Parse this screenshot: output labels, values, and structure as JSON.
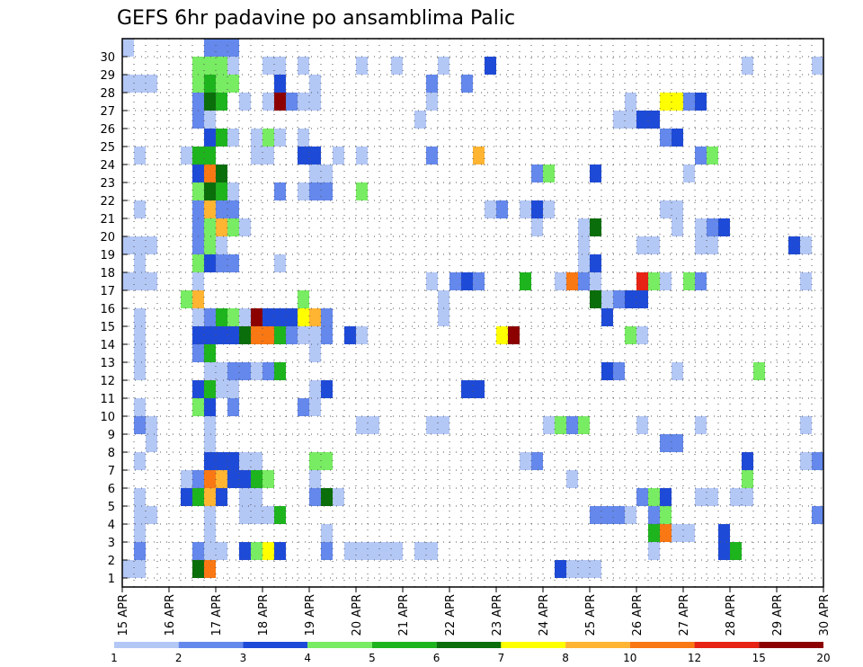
{
  "chart_data": {
    "type": "heatmap",
    "title": "GEFS 6hr padavine po ansamblima Palic",
    "y_ticks": [
      "1",
      "2",
      "3",
      "4",
      "5",
      "6",
      "7",
      "8",
      "9",
      "10",
      "11",
      "12",
      "13",
      "14",
      "15",
      "16",
      "17",
      "18",
      "19",
      "20",
      "21",
      "22",
      "23",
      "24",
      "25",
      "26",
      "27",
      "28",
      "29",
      "30"
    ],
    "x_ticks": [
      "15 APR",
      "16 APR",
      "17 APR",
      "18 APR",
      "19 APR",
      "20 APR",
      "21 APR",
      "22 APR",
      "23 APR",
      "24 APR",
      "25 APR",
      "26 APR",
      "27 APR",
      "28 APR",
      "29 APR",
      "30 APR"
    ],
    "x_range_steps": [
      0,
      60
    ],
    "y_range": [
      0,
      30
    ],
    "grid": "dotted",
    "colorbar": {
      "labels": [
        "1",
        "2",
        "3",
        "4",
        "5",
        "6",
        "7",
        "8",
        "10",
        "12",
        "15",
        "20"
      ],
      "colors": [
        "#b4c8f6",
        "#6488ec",
        "#1e4ad8",
        "#78ec62",
        "#1eb41e",
        "#0a6e0a",
        "#ffff00",
        "#ffb432",
        "#fa7814",
        "#e62314",
        "#8c0000"
      ]
    },
    "cells": [
      [
        0,
        30,
        1
      ],
      [
        7,
        30,
        2
      ],
      [
        8,
        30,
        2
      ],
      [
        9,
        30,
        2
      ],
      [
        6,
        29,
        4
      ],
      [
        7,
        29,
        4
      ],
      [
        8,
        29,
        4
      ],
      [
        9,
        29,
        1
      ],
      [
        12,
        29,
        1
      ],
      [
        13,
        29,
        1
      ],
      [
        15,
        29,
        1
      ],
      [
        20,
        29,
        1
      ],
      [
        23,
        29,
        1
      ],
      [
        27,
        29,
        1
      ],
      [
        31,
        29,
        3
      ],
      [
        53,
        29,
        1
      ],
      [
        59,
        29,
        1
      ],
      [
        0,
        28,
        1
      ],
      [
        1,
        28,
        1
      ],
      [
        2,
        28,
        1
      ],
      [
        6,
        28,
        4
      ],
      [
        7,
        28,
        5
      ],
      [
        8,
        28,
        4
      ],
      [
        9,
        28,
        4
      ],
      [
        13,
        28,
        3
      ],
      [
        16,
        28,
        1
      ],
      [
        26,
        28,
        2
      ],
      [
        29,
        28,
        2
      ],
      [
        6,
        27,
        2
      ],
      [
        7,
        27,
        6
      ],
      [
        8,
        27,
        5
      ],
      [
        10,
        27,
        1
      ],
      [
        12,
        27,
        1
      ],
      [
        13,
        27,
        11
      ],
      [
        14,
        27,
        2
      ],
      [
        15,
        27,
        1
      ],
      [
        16,
        27,
        1
      ],
      [
        26,
        27,
        1
      ],
      [
        43,
        27,
        1
      ],
      [
        46,
        27,
        7
      ],
      [
        47,
        27,
        7
      ],
      [
        48,
        27,
        2
      ],
      [
        49,
        27,
        3
      ],
      [
        6,
        26,
        2
      ],
      [
        7,
        26,
        1
      ],
      [
        25,
        26,
        1
      ],
      [
        42,
        26,
        1
      ],
      [
        43,
        26,
        1
      ],
      [
        44,
        26,
        3
      ],
      [
        45,
        26,
        3
      ],
      [
        7,
        25,
        3
      ],
      [
        8,
        25,
        5
      ],
      [
        9,
        25,
        1
      ],
      [
        11,
        25,
        1
      ],
      [
        12,
        25,
        4
      ],
      [
        13,
        25,
        1
      ],
      [
        15,
        25,
        1
      ],
      [
        46,
        25,
        2
      ],
      [
        47,
        25,
        3
      ],
      [
        1,
        24,
        1
      ],
      [
        5,
        24,
        1
      ],
      [
        6,
        24,
        5
      ],
      [
        7,
        24,
        5
      ],
      [
        11,
        24,
        1
      ],
      [
        12,
        24,
        1
      ],
      [
        15,
        24,
        3
      ],
      [
        16,
        24,
        3
      ],
      [
        18,
        24,
        1
      ],
      [
        20,
        24,
        1
      ],
      [
        26,
        24,
        2
      ],
      [
        30,
        24,
        8
      ],
      [
        49,
        24,
        2
      ],
      [
        50,
        24,
        4
      ],
      [
        6,
        23,
        3
      ],
      [
        7,
        23,
        9
      ],
      [
        8,
        23,
        6
      ],
      [
        16,
        23,
        1
      ],
      [
        17,
        23,
        1
      ],
      [
        35,
        23,
        2
      ],
      [
        36,
        23,
        4
      ],
      [
        40,
        23,
        3
      ],
      [
        48,
        23,
        1
      ],
      [
        6,
        22,
        4
      ],
      [
        7,
        22,
        6
      ],
      [
        8,
        22,
        5
      ],
      [
        9,
        22,
        1
      ],
      [
        13,
        22,
        2
      ],
      [
        15,
        22,
        1
      ],
      [
        16,
        22,
        2
      ],
      [
        17,
        22,
        2
      ],
      [
        20,
        22,
        4
      ],
      [
        1,
        21,
        1
      ],
      [
        6,
        21,
        2
      ],
      [
        7,
        21,
        8
      ],
      [
        8,
        21,
        2
      ],
      [
        9,
        21,
        2
      ],
      [
        31,
        21,
        1
      ],
      [
        32,
        21,
        2
      ],
      [
        34,
        21,
        1
      ],
      [
        35,
        21,
        3
      ],
      [
        36,
        21,
        1
      ],
      [
        46,
        21,
        1
      ],
      [
        47,
        21,
        1
      ],
      [
        6,
        20,
        2
      ],
      [
        7,
        20,
        4
      ],
      [
        8,
        20,
        8
      ],
      [
        9,
        20,
        4
      ],
      [
        10,
        20,
        1
      ],
      [
        35,
        20,
        1
      ],
      [
        39,
        20,
        1
      ],
      [
        40,
        20,
        6
      ],
      [
        47,
        20,
        1
      ],
      [
        49,
        20,
        1
      ],
      [
        50,
        20,
        2
      ],
      [
        51,
        20,
        3
      ],
      [
        0,
        19,
        1
      ],
      [
        1,
        19,
        1
      ],
      [
        2,
        19,
        1
      ],
      [
        6,
        19,
        2
      ],
      [
        7,
        19,
        4
      ],
      [
        8,
        19,
        1
      ],
      [
        39,
        19,
        1
      ],
      [
        44,
        19,
        1
      ],
      [
        45,
        19,
        1
      ],
      [
        49,
        19,
        1
      ],
      [
        50,
        19,
        1
      ],
      [
        57,
        19,
        3
      ],
      [
        58,
        19,
        1
      ],
      [
        1,
        18,
        1
      ],
      [
        6,
        18,
        4
      ],
      [
        7,
        18,
        3
      ],
      [
        8,
        18,
        2
      ],
      [
        9,
        18,
        2
      ],
      [
        13,
        18,
        1
      ],
      [
        39,
        18,
        1
      ],
      [
        40,
        18,
        3
      ],
      [
        0,
        17,
        1
      ],
      [
        1,
        17,
        1
      ],
      [
        2,
        17,
        1
      ],
      [
        6,
        17,
        1
      ],
      [
        26,
        17,
        1
      ],
      [
        28,
        17,
        2
      ],
      [
        29,
        17,
        3
      ],
      [
        30,
        17,
        2
      ],
      [
        34,
        17,
        5
      ],
      [
        37,
        17,
        1
      ],
      [
        38,
        17,
        9
      ],
      [
        39,
        17,
        2
      ],
      [
        40,
        17,
        1
      ],
      [
        44,
        17,
        10
      ],
      [
        45,
        17,
        4
      ],
      [
        46,
        17,
        1
      ],
      [
        48,
        17,
        4
      ],
      [
        49,
        17,
        2
      ],
      [
        58,
        17,
        1
      ],
      [
        5,
        16,
        4
      ],
      [
        6,
        16,
        8
      ],
      [
        15,
        16,
        4
      ],
      [
        27,
        16,
        1
      ],
      [
        40,
        16,
        6
      ],
      [
        41,
        16,
        1
      ],
      [
        42,
        16,
        2
      ],
      [
        43,
        16,
        3
      ],
      [
        44,
        16,
        3
      ],
      [
        1,
        15,
        1
      ],
      [
        6,
        15,
        1
      ],
      [
        7,
        15,
        2
      ],
      [
        8,
        15,
        5
      ],
      [
        9,
        15,
        4
      ],
      [
        10,
        15,
        1
      ],
      [
        11,
        15,
        11
      ],
      [
        12,
        15,
        3
      ],
      [
        13,
        15,
        3
      ],
      [
        14,
        15,
        3
      ],
      [
        15,
        15,
        7
      ],
      [
        16,
        15,
        8
      ],
      [
        17,
        15,
        2
      ],
      [
        27,
        15,
        1
      ],
      [
        41,
        15,
        3
      ],
      [
        1,
        14,
        1
      ],
      [
        6,
        14,
        3
      ],
      [
        7,
        14,
        3
      ],
      [
        8,
        14,
        3
      ],
      [
        9,
        14,
        3
      ],
      [
        10,
        14,
        6
      ],
      [
        11,
        14,
        9
      ],
      [
        12,
        14,
        9
      ],
      [
        13,
        14,
        5
      ],
      [
        14,
        14,
        2
      ],
      [
        15,
        14,
        1
      ],
      [
        16,
        14,
        1
      ],
      [
        17,
        14,
        2
      ],
      [
        19,
        14,
        3
      ],
      [
        20,
        14,
        1
      ],
      [
        32,
        14,
        7
      ],
      [
        33,
        14,
        11
      ],
      [
        43,
        14,
        4
      ],
      [
        44,
        14,
        1
      ],
      [
        1,
        13,
        1
      ],
      [
        6,
        13,
        2
      ],
      [
        7,
        13,
        5
      ],
      [
        16,
        13,
        1
      ],
      [
        1,
        12,
        1
      ],
      [
        7,
        12,
        1
      ],
      [
        8,
        12,
        1
      ],
      [
        9,
        12,
        2
      ],
      [
        10,
        12,
        2
      ],
      [
        11,
        12,
        1
      ],
      [
        12,
        12,
        2
      ],
      [
        13,
        12,
        5
      ],
      [
        41,
        12,
        3
      ],
      [
        42,
        12,
        2
      ],
      [
        47,
        12,
        1
      ],
      [
        54,
        12,
        4
      ],
      [
        6,
        11,
        3
      ],
      [
        7,
        11,
        5
      ],
      [
        8,
        11,
        1
      ],
      [
        9,
        11,
        1
      ],
      [
        16,
        11,
        1
      ],
      [
        17,
        11,
        3
      ],
      [
        29,
        11,
        3
      ],
      [
        30,
        11,
        3
      ],
      [
        1,
        10,
        1
      ],
      [
        6,
        10,
        4
      ],
      [
        7,
        10,
        3
      ],
      [
        9,
        10,
        2
      ],
      [
        15,
        10,
        2
      ],
      [
        16,
        10,
        1
      ],
      [
        1,
        9,
        2
      ],
      [
        2,
        9,
        1
      ],
      [
        7,
        9,
        1
      ],
      [
        20,
        9,
        1
      ],
      [
        21,
        9,
        1
      ],
      [
        26,
        9,
        1
      ],
      [
        27,
        9,
        1
      ],
      [
        36,
        9,
        1
      ],
      [
        37,
        9,
        4
      ],
      [
        38,
        9,
        2
      ],
      [
        39,
        9,
        4
      ],
      [
        44,
        9,
        1
      ],
      [
        49,
        9,
        1
      ],
      [
        58,
        9,
        1
      ],
      [
        2,
        8,
        1
      ],
      [
        7,
        8,
        1
      ],
      [
        46,
        8,
        2
      ],
      [
        47,
        8,
        2
      ],
      [
        1,
        7,
        1
      ],
      [
        7,
        7,
        3
      ],
      [
        8,
        7,
        3
      ],
      [
        9,
        7,
        3
      ],
      [
        10,
        7,
        1
      ],
      [
        11,
        7,
        1
      ],
      [
        16,
        7,
        4
      ],
      [
        17,
        7,
        4
      ],
      [
        34,
        7,
        1
      ],
      [
        35,
        7,
        2
      ],
      [
        53,
        7,
        3
      ],
      [
        58,
        7,
        1
      ],
      [
        59,
        7,
        2
      ],
      [
        5,
        6,
        1
      ],
      [
        6,
        6,
        2
      ],
      [
        7,
        6,
        9
      ],
      [
        8,
        6,
        8
      ],
      [
        9,
        6,
        3
      ],
      [
        10,
        6,
        3
      ],
      [
        11,
        6,
        5
      ],
      [
        12,
        6,
        4
      ],
      [
        16,
        6,
        1
      ],
      [
        38,
        6,
        1
      ],
      [
        53,
        6,
        4
      ],
      [
        1,
        5,
        1
      ],
      [
        5,
        5,
        3
      ],
      [
        6,
        5,
        5
      ],
      [
        7,
        5,
        8
      ],
      [
        8,
        5,
        3
      ],
      [
        10,
        5,
        1
      ],
      [
        11,
        5,
        1
      ],
      [
        16,
        5,
        2
      ],
      [
        17,
        5,
        6
      ],
      [
        18,
        5,
        1
      ],
      [
        44,
        5,
        2
      ],
      [
        45,
        5,
        4
      ],
      [
        46,
        5,
        3
      ],
      [
        49,
        5,
        1
      ],
      [
        50,
        5,
        1
      ],
      [
        52,
        5,
        1
      ],
      [
        53,
        5,
        1
      ],
      [
        1,
        4,
        1
      ],
      [
        2,
        4,
        1
      ],
      [
        7,
        4,
        1
      ],
      [
        10,
        4,
        1
      ],
      [
        11,
        4,
        1
      ],
      [
        12,
        4,
        1
      ],
      [
        13,
        4,
        5
      ],
      [
        40,
        4,
        2
      ],
      [
        41,
        4,
        2
      ],
      [
        42,
        4,
        2
      ],
      [
        43,
        4,
        1
      ],
      [
        45,
        4,
        2
      ],
      [
        46,
        4,
        4
      ],
      [
        59,
        4,
        2
      ],
      [
        1,
        3,
        1
      ],
      [
        7,
        3,
        1
      ],
      [
        17,
        3,
        1
      ],
      [
        45,
        3,
        5
      ],
      [
        46,
        3,
        9
      ],
      [
        47,
        3,
        1
      ],
      [
        48,
        3,
        1
      ],
      [
        51,
        3,
        3
      ],
      [
        1,
        2,
        2
      ],
      [
        6,
        2,
        2
      ],
      [
        7,
        2,
        1
      ],
      [
        8,
        2,
        1
      ],
      [
        10,
        2,
        3
      ],
      [
        11,
        2,
        4
      ],
      [
        12,
        2,
        7
      ],
      [
        13,
        2,
        3
      ],
      [
        17,
        2,
        2
      ],
      [
        19,
        2,
        1
      ],
      [
        20,
        2,
        1
      ],
      [
        21,
        2,
        1
      ],
      [
        22,
        2,
        1
      ],
      [
        23,
        2,
        1
      ],
      [
        25,
        2,
        1
      ],
      [
        26,
        2,
        1
      ],
      [
        45,
        2,
        1
      ],
      [
        51,
        2,
        3
      ],
      [
        52,
        2,
        5
      ],
      [
        0,
        1,
        1
      ],
      [
        1,
        1,
        1
      ],
      [
        6,
        1,
        6
      ],
      [
        7,
        1,
        9
      ],
      [
        37,
        1,
        3
      ],
      [
        38,
        1,
        1
      ],
      [
        39,
        1,
        1
      ],
      [
        40,
        1,
        1
      ]
    ]
  }
}
